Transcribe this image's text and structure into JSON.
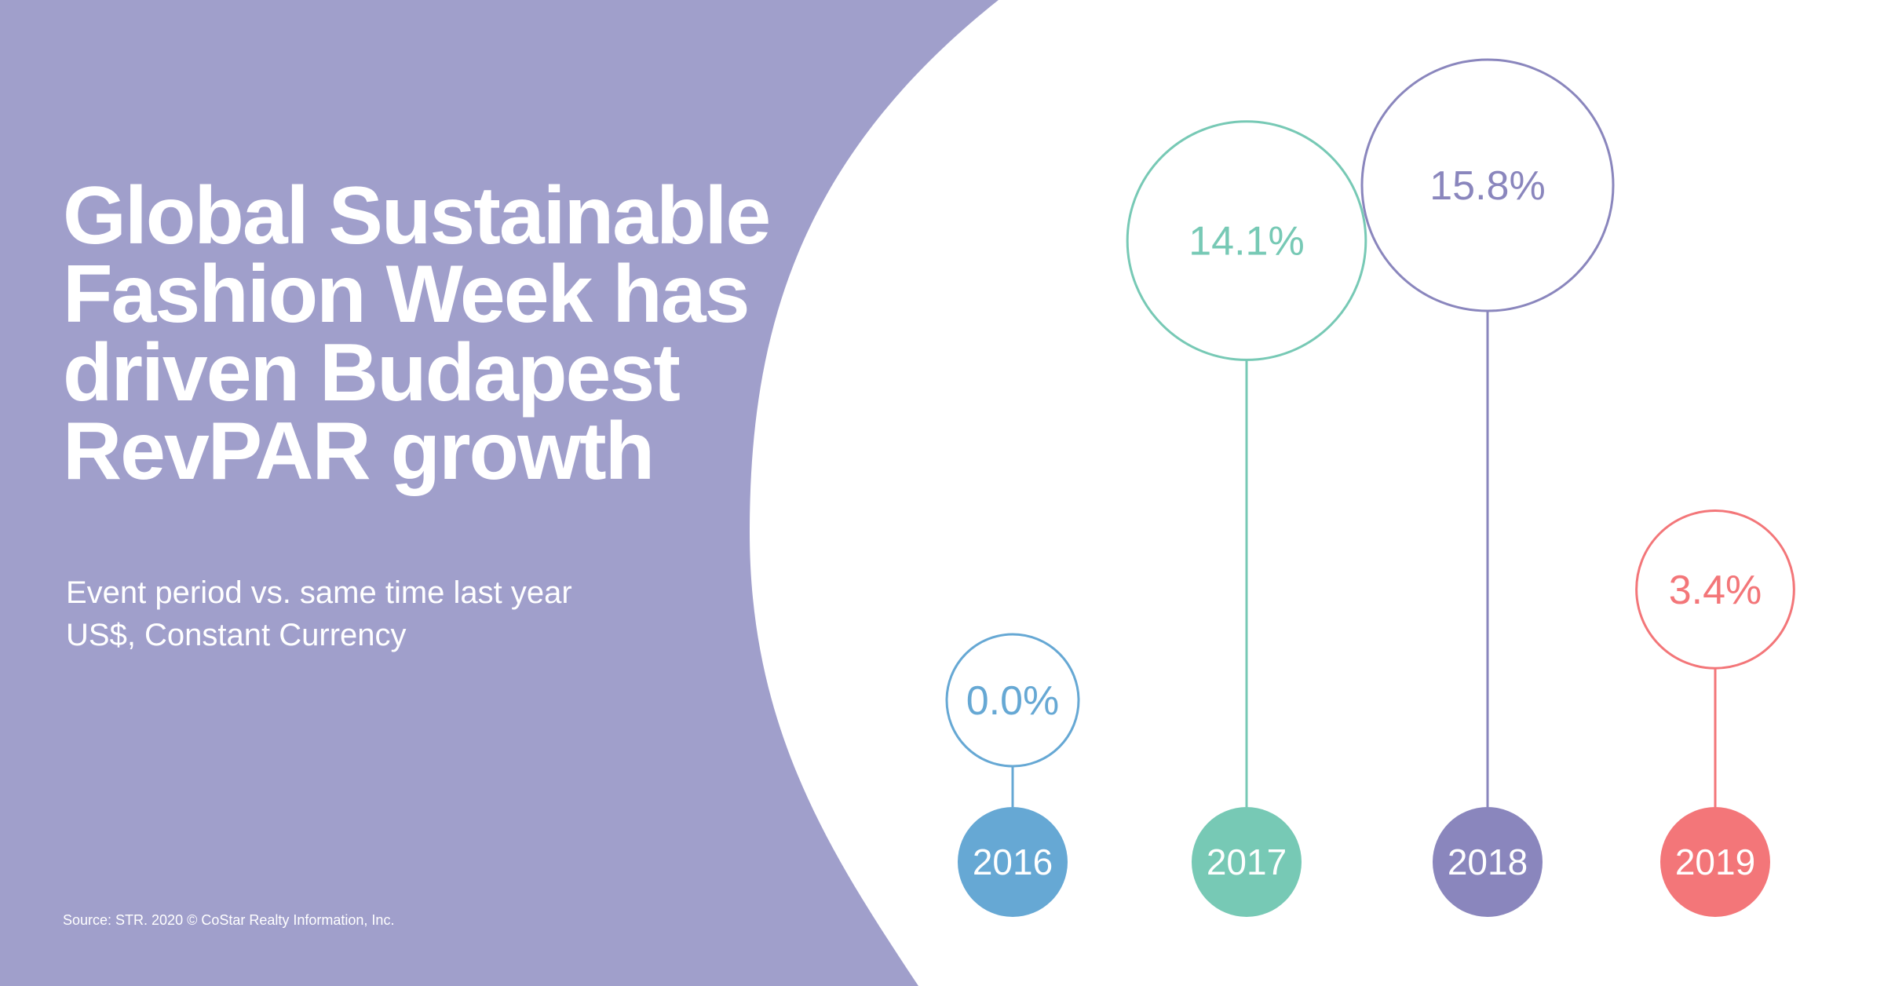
{
  "title_lines": [
    "Global Sustainable",
    "Fashion Week has",
    "driven Budapest",
    "RevPAR growth"
  ],
  "subtitle_lines": [
    "Event period vs. same time last year",
    "US$, Constant Currency"
  ],
  "source": "Source: STR. 2020 © CoStar Realty Information, Inc.",
  "colors": {
    "panel": "#a09fcb",
    "2016": "#66a8d4",
    "2017": "#77c9b5",
    "2018": "#8a86bd",
    "2019": "#f37679"
  },
  "chart_data": {
    "type": "bubble-lollipop",
    "categories": [
      "2016",
      "2017",
      "2018",
      "2019"
    ],
    "values": [
      0.0,
      14.1,
      15.8,
      3.4
    ],
    "value_labels": [
      "0.0%",
      "14.1%",
      "15.8%",
      "3.4%"
    ],
    "unit": "%"
  }
}
